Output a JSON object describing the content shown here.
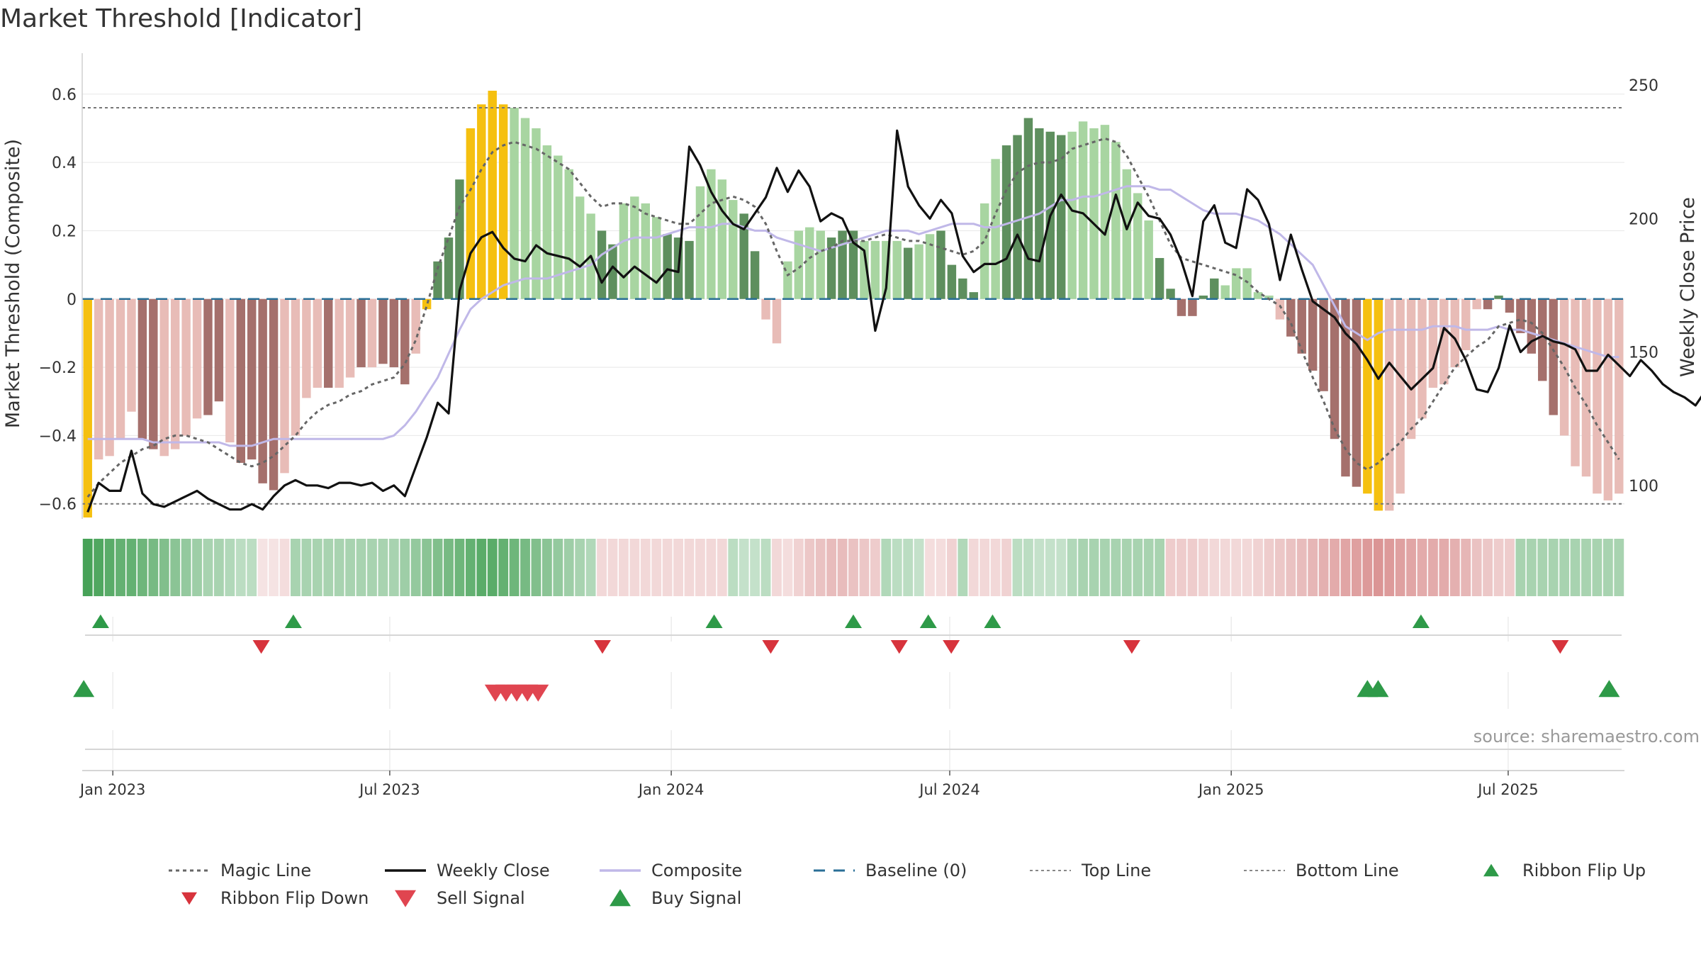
{
  "chart_data": {
    "type": "bar",
    "title": "Market Threshold [Indicator]",
    "ylabel": "Market Threshold (Composite)",
    "y2label": "Weekly Close Price",
    "ylim": [
      -0.64,
      0.72
    ],
    "y2lim": [
      88,
      262
    ],
    "yticks": [
      "0.6",
      "0.4",
      "0.2",
      "0",
      "−0.2",
      "−0.4",
      "−0.6"
    ],
    "y2ticks": [
      "250",
      "200",
      "150",
      "100"
    ],
    "x_start": "2022-12-12",
    "x_end": "2025-09-15",
    "xticks": [
      {
        "date": "2023-01-01",
        "label": "Jan 2023"
      },
      {
        "date": "2023-07-01",
        "label": "Jul 2023"
      },
      {
        "date": "2024-01-01",
        "label": "Jan 2024"
      },
      {
        "date": "2024-07-01",
        "label": "Jul 2024"
      },
      {
        "date": "2025-01-01",
        "label": "Jan 2025"
      },
      {
        "date": "2025-07-01",
        "label": "Jul 2025"
      }
    ],
    "top_line": 0.56,
    "bottom_line": -0.6,
    "colors": {
      "strong_pos": "#5e8f5e",
      "weak_pos": "#a8d5a1",
      "strong_neg": "#a5706c",
      "weak_neg": "#e8bcb7",
      "extreme": "#f5c010",
      "weekly_close": "#111111",
      "composite": "#c0b8e8",
      "magic": "#666666",
      "baseline": "#2a6f97",
      "signal_up": "#2e9a48",
      "signal_down": "#d7333c",
      "ribbon_green": "#3d9d4f",
      "ribbon_red": "#d98f8f"
    },
    "composite_bars": [
      -0.64,
      -0.47,
      -0.46,
      -0.41,
      -0.33,
      -0.41,
      -0.44,
      -0.46,
      -0.44,
      -0.4,
      -0.35,
      -0.34,
      -0.3,
      -0.42,
      -0.48,
      -0.47,
      -0.54,
      -0.56,
      -0.51,
      -0.4,
      -0.29,
      -0.26,
      -0.26,
      -0.26,
      -0.23,
      -0.2,
      -0.2,
      -0.19,
      -0.2,
      -0.25,
      -0.16,
      -0.03,
      0.11,
      0.18,
      0.35,
      0.5,
      0.57,
      0.61,
      0.57,
      0.56,
      0.53,
      0.5,
      0.45,
      0.42,
      0.38,
      0.3,
      0.25,
      0.2,
      0.16,
      0.28,
      0.3,
      0.28,
      0.24,
      0.19,
      0.18,
      0.17,
      0.33,
      0.38,
      0.35,
      0.29,
      0.25,
      0.14,
      -0.06,
      -0.13,
      0.11,
      0.2,
      0.21,
      0.2,
      0.18,
      0.2,
      0.2,
      0.17,
      0.17,
      0.17,
      0.17,
      0.15,
      0.16,
      0.19,
      0.2,
      0.1,
      0.06,
      0.02,
      0.28,
      0.41,
      0.45,
      0.48,
      0.53,
      0.5,
      0.49,
      0.48,
      0.49,
      0.52,
      0.5,
      0.51,
      0.46,
      0.38,
      0.31,
      0.23,
      0.12,
      0.03,
      -0.05,
      -0.05,
      0.01,
      0.06,
      0.04,
      0.09,
      0.09,
      0.02,
      0.01,
      -0.06,
      -0.11,
      -0.16,
      -0.21,
      -0.27,
      -0.41,
      -0.52,
      -0.55,
      -0.57,
      -0.62,
      -0.62,
      -0.57,
      -0.41,
      -0.35,
      -0.26,
      -0.25,
      -0.2,
      -0.15,
      -0.03,
      -0.03,
      0.01,
      -0.04,
      -0.1,
      -0.16,
      -0.24,
      -0.34,
      -0.4,
      -0.49,
      -0.52,
      -0.57,
      -0.59,
      -0.57
    ],
    "bar_classes": "xwwwwsswwwwsswsssswwwwswwswssswxsssxxxxwwwwwwwwsswwwwssswwwwsswwwwwwssswwwwswwsssswwsssssswwwwwwwwsssssswwwwwwsssssssxxwwwwwwwwwsssssss",
    "weekly_close": [
      90,
      101,
      98,
      98,
      113,
      97,
      93,
      92,
      94,
      96,
      98,
      95,
      93,
      91,
      91,
      93,
      91,
      96,
      100,
      102,
      100,
      100,
      99,
      101,
      101,
      100,
      101,
      98,
      100,
      96,
      107,
      118,
      131,
      127,
      173,
      187,
      193,
      195,
      189,
      185,
      184,
      190,
      187,
      186,
      185,
      182,
      186,
      176,
      182,
      178,
      182,
      179,
      176,
      181,
      180,
      227,
      220,
      210,
      203,
      198,
      196,
      202,
      208,
      219,
      210,
      218,
      212,
      199,
      202,
      200,
      191,
      188,
      158,
      174,
      233,
      212,
      205,
      200,
      207,
      202,
      186,
      180,
      183,
      183,
      185,
      194,
      185,
      184,
      201,
      209,
      203,
      202,
      198,
      194,
      209,
      196,
      206,
      201,
      200,
      194,
      184,
      171,
      199,
      205,
      191,
      189,
      211,
      207,
      198,
      177,
      194,
      181,
      169,
      166,
      163,
      157,
      153,
      147,
      140,
      146,
      141,
      136,
      140,
      144,
      159,
      155,
      147,
      136,
      135,
      144,
      160,
      150,
      154,
      156,
      154,
      153,
      151,
      143,
      143,
      149,
      145,
      141,
      147,
      143,
      138,
      135,
      133,
      130,
      136
    ],
    "weekly_close_extra": [
      131,
      130,
      132
    ],
    "composite_line": [
      -0.41,
      -0.41,
      -0.41,
      -0.41,
      -0.41,
      -0.41,
      -0.42,
      -0.42,
      -0.42,
      -0.42,
      -0.42,
      -0.42,
      -0.42,
      -0.43,
      -0.43,
      -0.43,
      -0.42,
      -0.41,
      -0.41,
      -0.41,
      -0.41,
      -0.41,
      -0.41,
      -0.41,
      -0.41,
      -0.41,
      -0.41,
      -0.41,
      -0.4,
      -0.37,
      -0.33,
      -0.28,
      -0.23,
      -0.16,
      -0.09,
      -0.03,
      0.0,
      0.02,
      0.04,
      0.05,
      0.06,
      0.06,
      0.06,
      0.07,
      0.08,
      0.09,
      0.1,
      0.13,
      0.15,
      0.17,
      0.18,
      0.18,
      0.18,
      0.19,
      0.2,
      0.21,
      0.21,
      0.21,
      0.22,
      0.22,
      0.21,
      0.2,
      0.2,
      0.18,
      0.17,
      0.16,
      0.15,
      0.14,
      0.15,
      0.16,
      0.17,
      0.18,
      0.19,
      0.2,
      0.2,
      0.2,
      0.19,
      0.2,
      0.21,
      0.22,
      0.22,
      0.22,
      0.21,
      0.21,
      0.22,
      0.23,
      0.24,
      0.25,
      0.27,
      0.29,
      0.29,
      0.3,
      0.3,
      0.31,
      0.32,
      0.33,
      0.33,
      0.33,
      0.32,
      0.32,
      0.3,
      0.28,
      0.26,
      0.25,
      0.25,
      0.25,
      0.24,
      0.23,
      0.21,
      0.19,
      0.16,
      0.13,
      0.1,
      0.04,
      -0.02,
      -0.08,
      -0.1,
      -0.12,
      -0.1,
      -0.09,
      -0.09,
      -0.09,
      -0.09,
      -0.08,
      -0.08,
      -0.08,
      -0.09,
      -0.09,
      -0.09,
      -0.08,
      -0.09,
      -0.09,
      -0.1,
      -0.11,
      -0.12,
      -0.13,
      -0.14,
      -0.15,
      -0.16,
      -0.17,
      -0.17
    ],
    "magic_line": [
      -0.58,
      -0.54,
      -0.51,
      -0.48,
      -0.46,
      -0.44,
      -0.43,
      -0.41,
      -0.4,
      -0.4,
      -0.41,
      -0.42,
      -0.44,
      -0.46,
      -0.48,
      -0.49,
      -0.48,
      -0.46,
      -0.43,
      -0.4,
      -0.36,
      -0.33,
      -0.31,
      -0.3,
      -0.28,
      -0.27,
      -0.25,
      -0.24,
      -0.23,
      -0.19,
      -0.12,
      -0.02,
      0.09,
      0.18,
      0.27,
      0.32,
      0.38,
      0.43,
      0.45,
      0.46,
      0.45,
      0.44,
      0.42,
      0.4,
      0.38,
      0.34,
      0.3,
      0.27,
      0.28,
      0.28,
      0.27,
      0.25,
      0.24,
      0.23,
      0.22,
      0.22,
      0.25,
      0.28,
      0.29,
      0.3,
      0.29,
      0.27,
      0.22,
      0.14,
      0.07,
      0.09,
      0.12,
      0.14,
      0.15,
      0.17,
      0.17,
      0.17,
      0.18,
      0.19,
      0.18,
      0.17,
      0.17,
      0.16,
      0.15,
      0.14,
      0.13,
      0.14,
      0.17,
      0.25,
      0.32,
      0.37,
      0.39,
      0.4,
      0.4,
      0.41,
      0.44,
      0.45,
      0.46,
      0.47,
      0.46,
      0.42,
      0.36,
      0.3,
      0.23,
      0.16,
      0.12,
      0.11,
      0.1,
      0.09,
      0.08,
      0.07,
      0.05,
      0.02,
      0.0,
      -0.02,
      -0.07,
      -0.15,
      -0.23,
      -0.3,
      -0.38,
      -0.44,
      -0.48,
      -0.5,
      -0.48,
      -0.45,
      -0.42,
      -0.38,
      -0.35,
      -0.3,
      -0.25,
      -0.2,
      -0.17,
      -0.14,
      -0.12,
      -0.08,
      -0.07,
      -0.06,
      -0.07,
      -0.1,
      -0.15,
      -0.2,
      -0.26,
      -0.31,
      -0.37,
      -0.42,
      -0.47
    ],
    "ribbon": "GGGGGGGGGGGGGGGGRRRGGGGGGGGGGGGGGGGGGGGGGGGGGGGRRRRRRRRRRRRGGGGRRRRRRRRRRGGGGRRRGRRRRGGGGGGGGGGGGGGRRRRRRRRRRRRRRRRRRRRRRRRRRRRRRRRGGGGGGGGGGGRRRRRRR",
    "ribbon_alpha": [
      0.95,
      0.9,
      0.85,
      0.8,
      0.8,
      0.75,
      0.7,
      0.65,
      0.6,
      0.55,
      0.5,
      0.45,
      0.45,
      0.4,
      0.35,
      0.35,
      0.25,
      0.25,
      0.3,
      0.45,
      0.45,
      0.45,
      0.45,
      0.45,
      0.45,
      0.45,
      0.45,
      0.45,
      0.45,
      0.5,
      0.55,
      0.6,
      0.65,
      0.7,
      0.75,
      0.8,
      0.85,
      0.85,
      0.8,
      0.75,
      0.7,
      0.65,
      0.6,
      0.55,
      0.5,
      0.45,
      0.4,
      0.35,
      0.35,
      0.35,
      0.35,
      0.35,
      0.35,
      0.35,
      0.35,
      0.35,
      0.35,
      0.35,
      0.35,
      0.35,
      0.3,
      0.3,
      0.35,
      0.35,
      0.3,
      0.4,
      0.5,
      0.55,
      0.6,
      0.6,
      0.55,
      0.5,
      0.45,
      0.4,
      0.35,
      0.35,
      0.3,
      0.3,
      0.3,
      0.4,
      0.4,
      0.35,
      0.35,
      0.35,
      0.4,
      0.35,
      0.35,
      0.3,
      0.3,
      0.3,
      0.4,
      0.45,
      0.45,
      0.45,
      0.45,
      0.45,
      0.45,
      0.45,
      0.45,
      0.45,
      0.45,
      0.45,
      0.4,
      0.35,
      0.35,
      0.35,
      0.35,
      0.4,
      0.45,
      0.5,
      0.55,
      0.6,
      0.65,
      0.7,
      0.75,
      0.8,
      0.85,
      0.9,
      0.95,
      0.9,
      0.85,
      0.8,
      0.75,
      0.75,
      0.75,
      0.7,
      0.65,
      0.55,
      0.5,
      0.45,
      0.45,
      0.45,
      0.45,
      0.45,
      0.45,
      0.45,
      0.45,
      0.45,
      0.45,
      0.45,
      0.45,
      0.5,
      0.55,
      0.6,
      0.6,
      0.65,
      0.7
    ],
    "ribbon_flip_up": [
      "2022-12-24",
      "2023-04-29",
      "2024-01-29",
      "2024-04-29",
      "2024-06-17",
      "2024-07-29",
      "2025-05-05"
    ],
    "ribbon_flip_down": [
      "2023-04-08",
      "2023-11-17",
      "2024-03-06",
      "2024-05-29",
      "2024-07-02",
      "2024-10-28",
      "2025-08-04"
    ],
    "buy_signal": [
      "2022-12-13",
      "2025-03-31",
      "2025-04-07",
      "2025-09-05"
    ],
    "sell_signal": [
      "2023-09-08",
      "2023-09-15",
      "2023-09-22",
      "2023-09-29",
      "2023-10-06"
    ],
    "legend": [
      {
        "label": "Magic Line",
        "type": "dotted"
      },
      {
        "label": "Weekly Close",
        "type": "solid"
      },
      {
        "label": "Composite",
        "type": "composite"
      },
      {
        "label": "Baseline (0)",
        "type": "dashed"
      },
      {
        "label": "Top Line",
        "type": "thin-dotted"
      },
      {
        "label": "Bottom Line",
        "type": "thin-dotted"
      },
      {
        "label": "Ribbon Flip Up",
        "type": "tri-up-small"
      },
      {
        "label": "Ribbon Flip Down",
        "type": "tri-down-small"
      },
      {
        "label": "Sell Signal",
        "type": "tri-down"
      },
      {
        "label": "Buy Signal",
        "type": "tri-up"
      }
    ],
    "source": "source: sharemaestro.com",
    "grid": true
  }
}
